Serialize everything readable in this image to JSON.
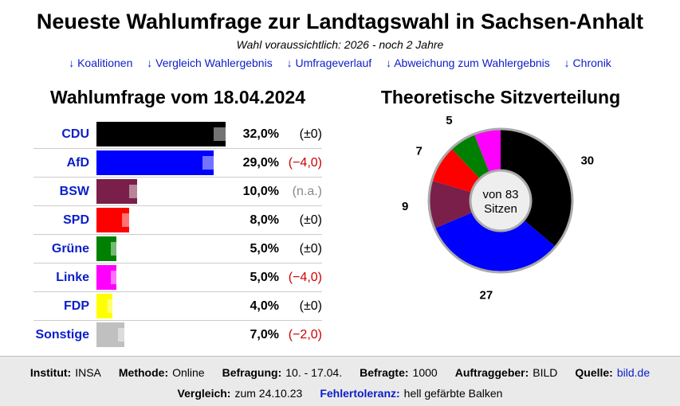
{
  "title": "Neueste Wahlumfrage zur Landtagswahl in Sachsen-Anhalt",
  "subtitle": "Wahl voraussichtlich: 2026 - noch 2 Jahre",
  "nav": [
    {
      "label": "↓ Koalitionen"
    },
    {
      "label": "↓ Vergleich Wahlergebnis"
    },
    {
      "label": "↓ Umfrageverlauf"
    },
    {
      "label": "↓ Abweichung zum Wahlergebnis"
    },
    {
      "label": "↓ Chronik"
    }
  ],
  "chart_data": [
    {
      "type": "bar",
      "title": "Wahlumfrage vom 18.04.2024",
      "categories": [
        "CDU",
        "AfD",
        "BSW",
        "SPD",
        "Grüne",
        "Linke",
        "FDP",
        "Sonstige"
      ],
      "values": [
        32.0,
        29.0,
        10.0,
        8.0,
        5.0,
        5.0,
        4.0,
        7.0
      ],
      "value_labels": [
        "32,0%",
        "29,0%",
        "10,0%",
        "8,0%",
        "5,0%",
        "5,0%",
        "4,0%",
        "7,0%"
      ],
      "changes": [
        "(±0)",
        "(−4,0)",
        "(n.a.)",
        "(±0)",
        "(±0)",
        "(−4,0)",
        "(±0)",
        "(−2,0)"
      ],
      "change_colors": [
        "#000000",
        "#cc0000",
        "#888888",
        "#000000",
        "#000000",
        "#cc0000",
        "#000000",
        "#cc0000"
      ],
      "colors": [
        "#000000",
        "#0000ff",
        "#7a1f4a",
        "#ff0000",
        "#008000",
        "#ff00ff",
        "#ffff00",
        "#c0c0c0"
      ],
      "error_tolerance": [
        2.9,
        2.8,
        2.0,
        1.7,
        1.4,
        1.4,
        1.2,
        1.6
      ],
      "xlim": [
        0,
        32
      ]
    },
    {
      "type": "pie",
      "title": "Theoretische Sitzverteilung",
      "center_label": [
        "von 83",
        "Sitzen"
      ],
      "categories": [
        "CDU",
        "AfD",
        "BSW",
        "SPD",
        "Grüne",
        "Linke"
      ],
      "values": [
        30,
        27,
        9,
        7,
        5,
        5
      ],
      "colors": [
        "#000000",
        "#0000ff",
        "#7a1f4a",
        "#ff0000",
        "#008000",
        "#ff00ff"
      ],
      "start_angle_deg": 270
    }
  ],
  "footer": {
    "line1": [
      {
        "label": "Institut:",
        "value": "INSA"
      },
      {
        "label": "Methode:",
        "value": "Online"
      },
      {
        "label": "Befragung:",
        "value": "10. - 17.04."
      },
      {
        "label": "Befragte:",
        "value": "1000"
      },
      {
        "label": "Auftraggeber:",
        "value": "BILD"
      },
      {
        "label": "Quelle:",
        "value": "bild.de",
        "link": true
      }
    ],
    "line2": [
      {
        "label": "Vergleich:",
        "value": "zum 24.10.23"
      },
      {
        "label": "Fehlertoleranz:",
        "value": "hell gefärbte Balken",
        "label_link": true
      }
    ]
  }
}
